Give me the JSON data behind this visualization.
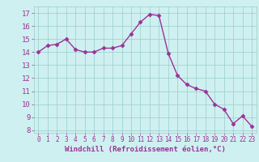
{
  "x": [
    0,
    1,
    2,
    3,
    4,
    5,
    6,
    7,
    8,
    9,
    10,
    11,
    12,
    13,
    14,
    15,
    16,
    17,
    18,
    19,
    20,
    21,
    22,
    23
  ],
  "y": [
    14.0,
    14.5,
    14.6,
    15.0,
    14.2,
    14.0,
    14.0,
    14.3,
    14.3,
    14.5,
    15.4,
    16.3,
    16.9,
    16.8,
    13.9,
    12.2,
    11.5,
    11.2,
    11.0,
    10.0,
    9.6,
    8.5,
    9.1,
    8.3
  ],
  "line_color": "#993399",
  "marker": "D",
  "marker_size": 2.5,
  "linewidth": 1.0,
  "bg_color": "#cff0f0",
  "grid_color": "#99cccc",
  "xlabel": "Windchill (Refroidissement éolien,°C)",
  "xlim": [
    -0.5,
    23.5
  ],
  "ylim": [
    7.8,
    17.5
  ],
  "yticks": [
    8,
    9,
    10,
    11,
    12,
    13,
    14,
    15,
    16,
    17
  ],
  "xticks": [
    0,
    1,
    2,
    3,
    4,
    5,
    6,
    7,
    8,
    9,
    10,
    11,
    12,
    13,
    14,
    15,
    16,
    17,
    18,
    19,
    20,
    21,
    22,
    23
  ],
  "tick_color": "#993399",
  "label_color": "#993399",
  "xlabel_fontsize": 6.5,
  "ytick_fontsize": 6.5,
  "xtick_fontsize": 5.5
}
